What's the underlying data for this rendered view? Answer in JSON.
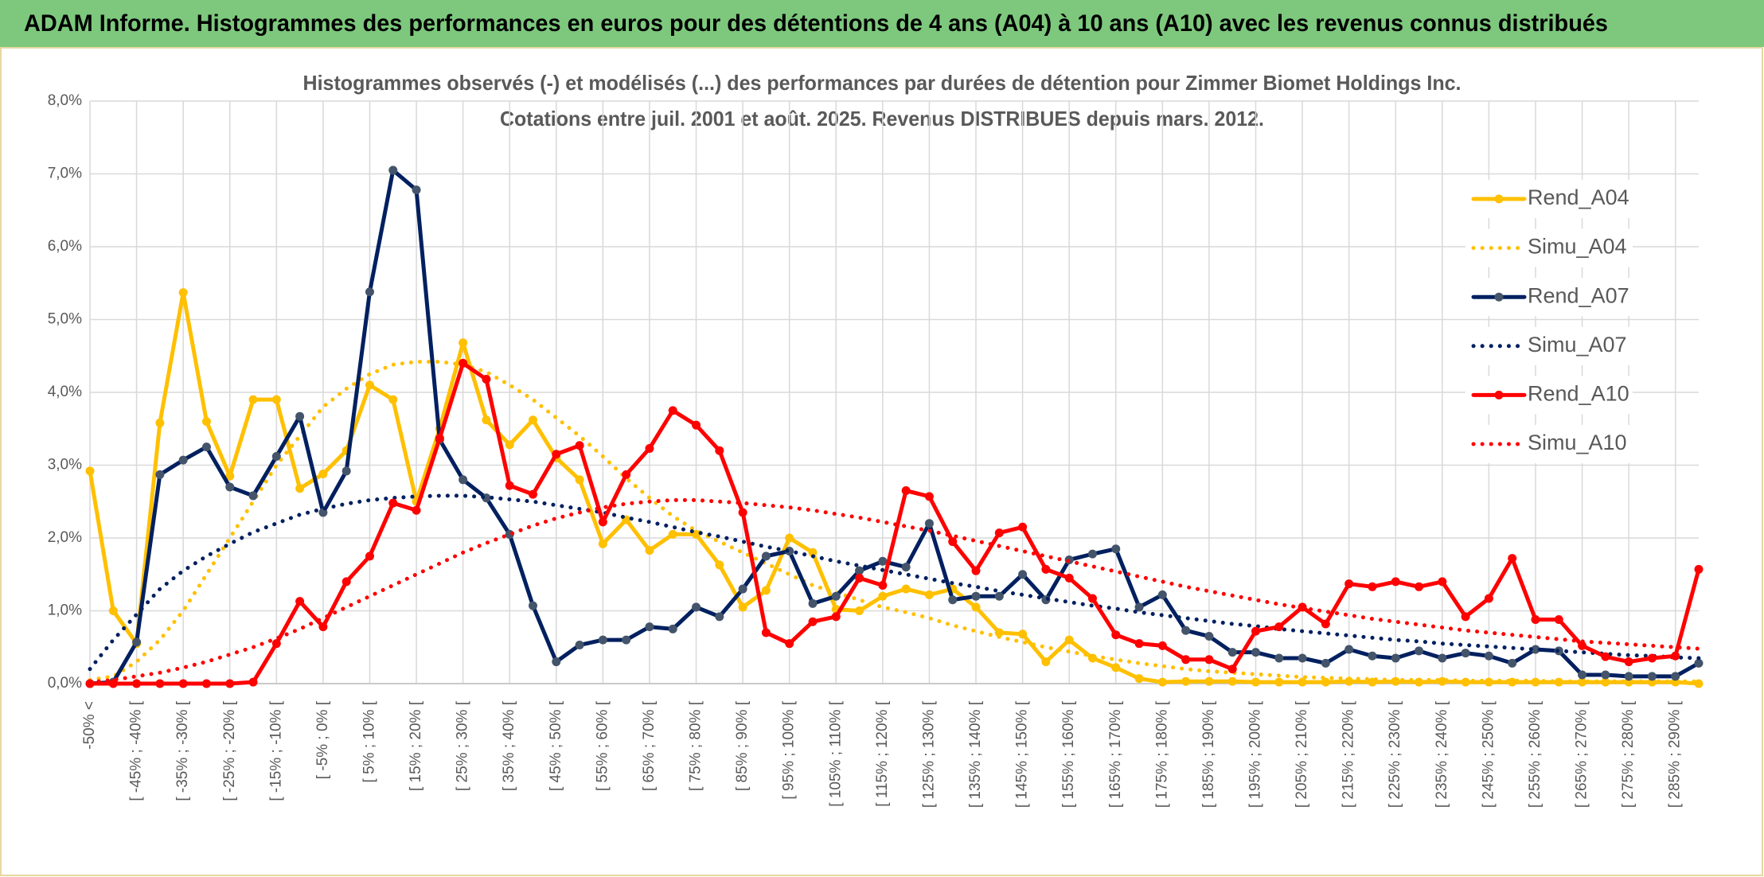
{
  "header": {
    "title": "ADAM Informe. Histogrammes des performances en euros pour des détentions de 4 ans (A04) à 10 ans (A10) avec les revenus connus distribués"
  },
  "chart_data": {
    "type": "line",
    "title": "Histogrammes observés (-) et modélisés (...) des performances par durées de détention pour Zimmer Biomet Holdings Inc.",
    "subtitle": "Cotations entre juil. 2001 et août. 2025. Revenus DISTRIBUES depuis mars. 2012.",
    "categories": [
      "-50% <",
      null,
      "[ -45% ; -40% [",
      null,
      "[ -35% ; -30% [",
      null,
      "[ -25% ; -20% [",
      null,
      "[ -15% ; -10% [",
      null,
      "[ -5% ; 0% [",
      null,
      "[ 5% ; 10% [",
      null,
      "[ 15% ; 20% [",
      null,
      "[ 25% ; 30% [",
      null,
      "[ 35% ; 40% [",
      null,
      "[ 45% ; 50% [",
      null,
      "[ 55% ; 60% [",
      null,
      "[ 65% ; 70% [",
      null,
      "[ 75% ; 80% [",
      null,
      "[ 85% ; 90% [",
      null,
      "[ 95% ; 100% [",
      null,
      "[ 105% ; 110% [",
      null,
      "[ 115% ; 120% [",
      null,
      "[ 125% ; 130% [",
      null,
      "[ 135% ; 140% [",
      null,
      "[ 145% ; 150% [",
      null,
      "[ 155% ; 160% [",
      null,
      "[ 165% ; 170% [",
      null,
      "[ 175% ; 180% [",
      null,
      "[ 185% ; 190% [",
      null,
      "[ 195% ; 200% [",
      null,
      "[ 205% ; 210% [",
      null,
      "[ 215% ; 220% [",
      null,
      "[ 225% ; 230% [",
      null,
      "[ 235% ; 240% [",
      null,
      "[ 245% ; 250% [",
      null,
      "[ 255% ; 260% [",
      null,
      "[ 265% ; 270% [",
      null,
      "[ 275% ; 280% [",
      null,
      "[ 285% ; 290% [",
      null
    ],
    "ylim": [
      0,
      8
    ],
    "yticks": [
      {
        "value": 0,
        "label": "0,0%"
      },
      {
        "value": 1,
        "label": "1,0%"
      },
      {
        "value": 2,
        "label": "2,0%"
      },
      {
        "value": 3,
        "label": "3,0%"
      },
      {
        "value": 4,
        "label": "4,0%"
      },
      {
        "value": 5,
        "label": "5,0%"
      },
      {
        "value": 6,
        "label": "6,0%"
      },
      {
        "value": 7,
        "label": "7,0%"
      },
      {
        "value": 8,
        "label": "8,0%"
      }
    ],
    "grid": true,
    "legend": "right",
    "series": [
      {
        "name": "Rend_A04",
        "color": "#ffc000",
        "line_style": "solid",
        "markers": true,
        "values": [
          2.92,
          1.0,
          0.55,
          3.58,
          5.37,
          3.6,
          2.85,
          3.9,
          3.9,
          2.68,
          2.88,
          3.2,
          4.1,
          3.9,
          2.5,
          3.5,
          4.68,
          3.62,
          3.28,
          3.62,
          3.1,
          2.8,
          1.92,
          2.25,
          1.83,
          2.05,
          2.05,
          1.63,
          1.05,
          1.28,
          2.0,
          1.8,
          1.02,
          1.0,
          1.2,
          1.3,
          1.22,
          1.3,
          1.05,
          0.7,
          0.68,
          0.3,
          0.6,
          0.35,
          0.22,
          0.07,
          0.02,
          0.03,
          0.03,
          0.03,
          0.02,
          0.02,
          0.02,
          0.02,
          0.03,
          0.02,
          0.03,
          0.02,
          0.03,
          0.02,
          0.02,
          0.02,
          0.02,
          0.02,
          0.02,
          0.02,
          0.02,
          0.02,
          0.02,
          0.0
        ]
      },
      {
        "name": "Simu_A04",
        "color": "#ffc000",
        "line_style": "dotted",
        "markers": false,
        "values": [
          0.05,
          0.1,
          0.3,
          0.6,
          1.0,
          1.5,
          2.0,
          2.5,
          3.0,
          3.4,
          3.8,
          4.05,
          4.25,
          4.38,
          4.42,
          4.42,
          4.38,
          4.28,
          4.1,
          3.9,
          3.65,
          3.4,
          3.12,
          2.82,
          2.55,
          2.3,
          2.1,
          1.95,
          1.8,
          1.65,
          1.5,
          1.35,
          1.25,
          1.15,
          1.05,
          0.98,
          0.9,
          0.8,
          0.72,
          0.64,
          0.57,
          0.5,
          0.44,
          0.38,
          0.33,
          0.28,
          0.24,
          0.2,
          0.17,
          0.15,
          0.13,
          0.11,
          0.09,
          0.08,
          0.07,
          0.06,
          0.05,
          0.05,
          0.05,
          0.04,
          0.04,
          0.04,
          0.04,
          0.03,
          0.03,
          0.03,
          0.03,
          0.03,
          0.03,
          0.03
        ]
      },
      {
        "name": "Rend_A07",
        "color": "#002060",
        "marker_color": "#44546a",
        "line_style": "solid",
        "markers": true,
        "values": [
          0.0,
          0.02,
          0.57,
          2.87,
          3.07,
          3.25,
          2.7,
          2.58,
          3.12,
          3.67,
          2.35,
          2.92,
          5.38,
          7.05,
          6.78,
          3.35,
          2.8,
          2.55,
          2.05,
          1.07,
          0.3,
          0.53,
          0.6,
          0.6,
          0.78,
          0.75,
          1.05,
          0.92,
          1.3,
          1.75,
          1.82,
          1.1,
          1.2,
          1.55,
          1.68,
          1.6,
          2.2,
          1.15,
          1.2,
          1.2,
          1.5,
          1.15,
          1.7,
          1.78,
          1.85,
          1.05,
          1.22,
          0.73,
          0.65,
          0.43,
          0.43,
          0.35,
          0.35,
          0.28,
          0.47,
          0.38,
          0.35,
          0.45,
          0.35,
          0.42,
          0.38,
          0.28,
          0.47,
          0.45,
          0.12,
          0.12,
          0.1,
          0.1,
          0.1,
          0.28
        ]
      },
      {
        "name": "Simu_A07",
        "color": "#002060",
        "line_style": "dotted",
        "markers": false,
        "values": [
          0.2,
          0.6,
          0.95,
          1.3,
          1.55,
          1.75,
          1.92,
          2.08,
          2.2,
          2.32,
          2.4,
          2.47,
          2.52,
          2.55,
          2.57,
          2.58,
          2.58,
          2.56,
          2.53,
          2.5,
          2.45,
          2.4,
          2.35,
          2.28,
          2.22,
          2.15,
          2.08,
          2.02,
          1.95,
          1.88,
          1.82,
          1.75,
          1.68,
          1.62,
          1.56,
          1.5,
          1.44,
          1.38,
          1.33,
          1.27,
          1.22,
          1.17,
          1.12,
          1.07,
          1.03,
          0.98,
          0.94,
          0.9,
          0.86,
          0.82,
          0.79,
          0.75,
          0.72,
          0.69,
          0.66,
          0.63,
          0.6,
          0.58,
          0.55,
          0.53,
          0.51,
          0.49,
          0.47,
          0.45,
          0.43,
          0.41,
          0.39,
          0.38,
          0.36,
          0.35
        ]
      },
      {
        "name": "Rend_A10",
        "color": "#ff0000",
        "line_style": "solid",
        "markers": true,
        "values": [
          0,
          0,
          0,
          0,
          0,
          0,
          0,
          0.02,
          0.55,
          1.13,
          0.78,
          1.4,
          1.75,
          2.48,
          2.38,
          3.37,
          4.4,
          4.18,
          2.72,
          2.6,
          3.15,
          3.27,
          2.22,
          2.87,
          3.23,
          3.75,
          3.55,
          3.2,
          2.35,
          0.7,
          0.55,
          0.85,
          0.92,
          1.45,
          1.35,
          2.65,
          2.57,
          1.95,
          1.55,
          2.07,
          2.15,
          1.57,
          1.45,
          1.17,
          0.67,
          0.55,
          0.52,
          0.33,
          0.33,
          0.2,
          0.72,
          0.78,
          1.05,
          0.82,
          1.37,
          1.33,
          1.4,
          1.33,
          1.4,
          0.92,
          1.17,
          1.72,
          0.88,
          0.88,
          0.52,
          0.37,
          0.3,
          0.35,
          0.38,
          1.57
        ]
      },
      {
        "name": "Simu_A10",
        "color": "#ff0000",
        "line_style": "dotted",
        "markers": false,
        "values": [
          0.02,
          0.05,
          0.1,
          0.15,
          0.22,
          0.3,
          0.4,
          0.5,
          0.62,
          0.75,
          0.9,
          1.05,
          1.2,
          1.35,
          1.5,
          1.65,
          1.8,
          1.93,
          2.05,
          2.17,
          2.27,
          2.35,
          2.42,
          2.47,
          2.5,
          2.52,
          2.52,
          2.5,
          2.48,
          2.45,
          2.42,
          2.38,
          2.33,
          2.28,
          2.22,
          2.16,
          2.1,
          2.03,
          1.96,
          1.89,
          1.82,
          1.75,
          1.68,
          1.61,
          1.54,
          1.47,
          1.4,
          1.33,
          1.27,
          1.21,
          1.15,
          1.09,
          1.04,
          0.99,
          0.94,
          0.89,
          0.85,
          0.81,
          0.77,
          0.73,
          0.7,
          0.67,
          0.64,
          0.61,
          0.58,
          0.56,
          0.54,
          0.52,
          0.5,
          0.48
        ]
      }
    ]
  }
}
